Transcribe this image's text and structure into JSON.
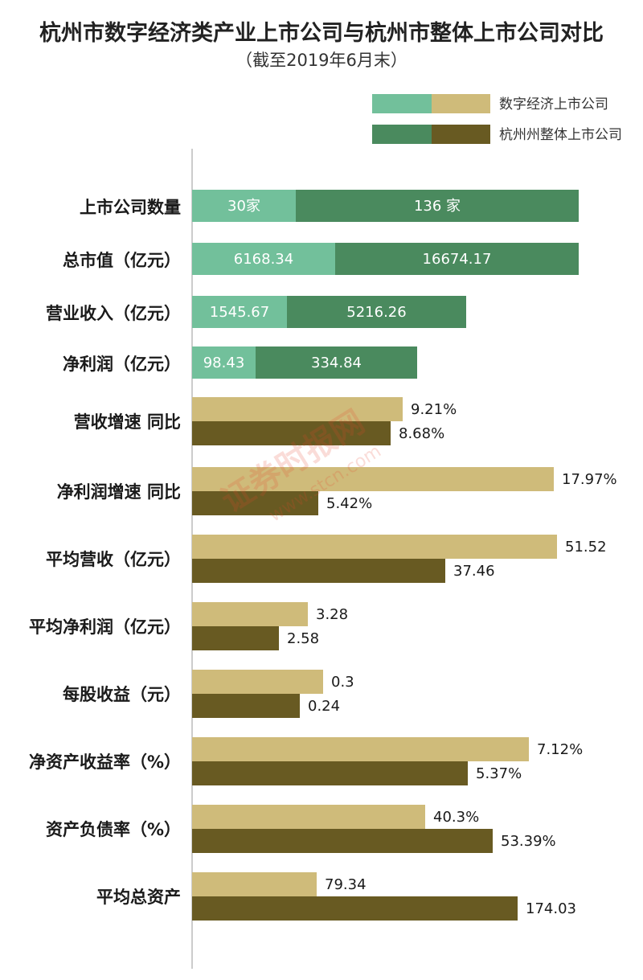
{
  "chart_data": {
    "type": "bar",
    "title": "杭州市数字经济类产业上市公司与杭州市整体上市公司对比",
    "subtitle": "（截至2019年6月末）",
    "legend": {
      "placement": "top-right",
      "entries": [
        {
          "label": "数字经济上市公司",
          "colors": [
            "#72c09b",
            "#cfbb7a"
          ]
        },
        {
          "label": "杭州州整体上市公司",
          "colors": [
            "#4a8a5e",
            "#685a22"
          ]
        }
      ]
    },
    "colors": {
      "digital_a": "#72c09b",
      "overall_a": "#4a8a5e",
      "digital_b": "#cfbb7a",
      "overall_b": "#685a22"
    },
    "stacked_rows": [
      {
        "category": "上市公司数量",
        "digital": 30,
        "overall": 136,
        "digital_label": "30家",
        "overall_label": "136 家"
      },
      {
        "category": "总市值（亿元）",
        "digital": 6168.34,
        "overall": 16674.17,
        "digital_label": "6168.34",
        "overall_label": "16674.17"
      },
      {
        "category": "营业收入（亿元）",
        "digital": 1545.67,
        "overall": 5216.26,
        "digital_label": "1545.67",
        "overall_label": "5216.26"
      },
      {
        "category": "净利润（亿元）",
        "digital": 98.43,
        "overall": 334.84,
        "digital_label": "98.43",
        "overall_label": "334.84"
      }
    ],
    "grouped_rows": [
      {
        "category": "营收增速 同比",
        "digital": 9.21,
        "overall": 8.68,
        "digital_label": "9.21%",
        "overall_label": "8.68%"
      },
      {
        "category": "净利润增速 同比",
        "digital": 17.97,
        "overall": 5.42,
        "digital_label": "17.97%",
        "overall_label": "5.42%"
      },
      {
        "category": "平均营收（亿元）",
        "digital": 51.52,
        "overall": 37.46,
        "digital_label": "51.52",
        "overall_label": "37.46"
      },
      {
        "category": "平均净利润（亿元）",
        "digital": 3.28,
        "overall": 2.58,
        "digital_label": "3.28",
        "overall_label": "2.58"
      },
      {
        "category": "每股收益（元）",
        "digital": 0.3,
        "overall": 0.24,
        "digital_label": "0.3",
        "overall_label": "0.24"
      },
      {
        "category": "净资产收益率（%）",
        "digital": 7.12,
        "overall": 5.37,
        "digital_label": "7.12%",
        "overall_label": "5.37%"
      },
      {
        "category": "资产负债率（%）",
        "digital": 40.3,
        "overall": 53.39,
        "digital_label": "40.3%",
        "overall_label": "53.39%"
      },
      {
        "category": "平均总资产",
        "digital": 79.34,
        "overall": 174.03,
        "digital_label": "79.34",
        "overall_label": "174.03"
      }
    ],
    "watermark": {
      "brand": "证券时报网",
      "url": "www.stcn.com"
    }
  }
}
